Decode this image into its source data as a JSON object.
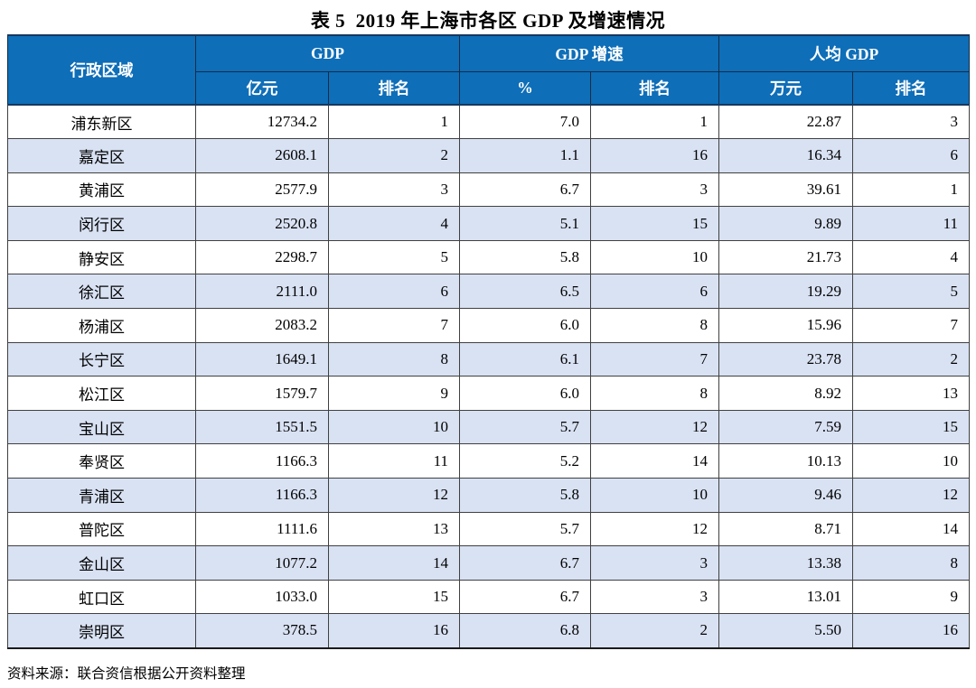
{
  "page": {
    "title": "表 5  2019 年上海市各区 GDP 及增速情况",
    "source_note": "资料来源：联合资信根据公开资料整理"
  },
  "table": {
    "region_header": "行政区域",
    "groups": [
      {
        "label": "GDP",
        "subcols": [
          "亿元",
          "排名"
        ]
      },
      {
        "label": "GDP 增速",
        "subcols": [
          "%",
          "排名"
        ]
      },
      {
        "label": "人均 GDP",
        "subcols": [
          "万元",
          "排名"
        ]
      }
    ],
    "rows": [
      [
        "浦东新区",
        "12734.2",
        "1",
        "7.0",
        "1",
        "22.87",
        "3"
      ],
      [
        "嘉定区",
        "2608.1",
        "2",
        "1.1",
        "16",
        "16.34",
        "6"
      ],
      [
        "黄浦区",
        "2577.9",
        "3",
        "6.7",
        "3",
        "39.61",
        "1"
      ],
      [
        "闵行区",
        "2520.8",
        "4",
        "5.1",
        "15",
        "9.89",
        "11"
      ],
      [
        "静安区",
        "2298.7",
        "5",
        "5.8",
        "10",
        "21.73",
        "4"
      ],
      [
        "徐汇区",
        "2111.0",
        "6",
        "6.5",
        "6",
        "19.29",
        "5"
      ],
      [
        "杨浦区",
        "2083.2",
        "7",
        "6.0",
        "8",
        "15.96",
        "7"
      ],
      [
        "长宁区",
        "1649.1",
        "8",
        "6.1",
        "7",
        "23.78",
        "2"
      ],
      [
        "松江区",
        "1579.7",
        "9",
        "6.0",
        "8",
        "8.92",
        "13"
      ],
      [
        "宝山区",
        "1551.5",
        "10",
        "5.7",
        "12",
        "7.59",
        "15"
      ],
      [
        "奉贤区",
        "1166.3",
        "11",
        "5.2",
        "14",
        "10.13",
        "10"
      ],
      [
        "青浦区",
        "1166.3",
        "12",
        "5.8",
        "10",
        "9.46",
        "12"
      ],
      [
        "普陀区",
        "1111.6",
        "13",
        "5.7",
        "12",
        "8.71",
        "14"
      ],
      [
        "金山区",
        "1077.2",
        "14",
        "6.7",
        "3",
        "13.38",
        "8"
      ],
      [
        "虹口区",
        "1033.0",
        "15",
        "6.7",
        "3",
        "13.01",
        "9"
      ],
      [
        "崇明区",
        "378.5",
        "16",
        "6.8",
        "2",
        "5.50",
        "16"
      ]
    ]
  },
  "colors": {
    "header_bg": "#0E6EB8",
    "header_text": "#FFFFFF",
    "band_row_bg": "#D9E2F3",
    "white_row_bg": "#FFFFFF",
    "frame_border": "#17375E",
    "grid_line": "#404040",
    "text": "#000000"
  }
}
